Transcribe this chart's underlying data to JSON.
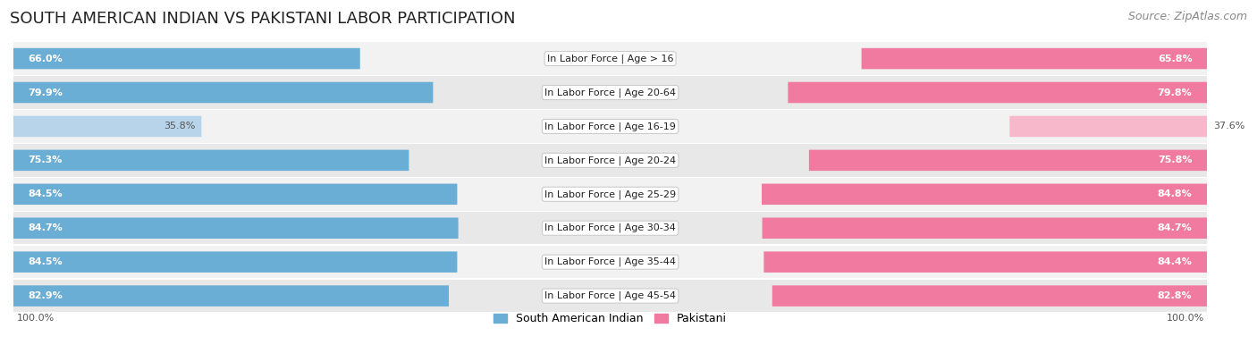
{
  "title": "SOUTH AMERICAN INDIAN VS PAKISTANI LABOR PARTICIPATION",
  "source": "Source: ZipAtlas.com",
  "categories": [
    "In Labor Force | Age > 16",
    "In Labor Force | Age 20-64",
    "In Labor Force | Age 16-19",
    "In Labor Force | Age 20-24",
    "In Labor Force | Age 25-29",
    "In Labor Force | Age 30-34",
    "In Labor Force | Age 35-44",
    "In Labor Force | Age 45-54"
  ],
  "south_american_values": [
    66.0,
    79.9,
    35.8,
    75.3,
    84.5,
    84.7,
    84.5,
    82.9
  ],
  "pakistani_values": [
    65.8,
    79.8,
    37.6,
    75.8,
    84.8,
    84.7,
    84.4,
    82.8
  ],
  "south_american_color": "#6aadd5",
  "south_american_color_light": "#b8d4ea",
  "pakistani_color": "#f07aa0",
  "pakistani_color_light": "#f7b8cc",
  "row_bg_odd": "#f2f2f2",
  "row_bg_even": "#e8e8e8",
  "max_value": 100.0,
  "legend_labels": [
    "South American Indian",
    "Pakistani"
  ],
  "title_fontsize": 13,
  "source_fontsize": 9,
  "cat_label_fontsize": 8,
  "value_fontsize": 8
}
